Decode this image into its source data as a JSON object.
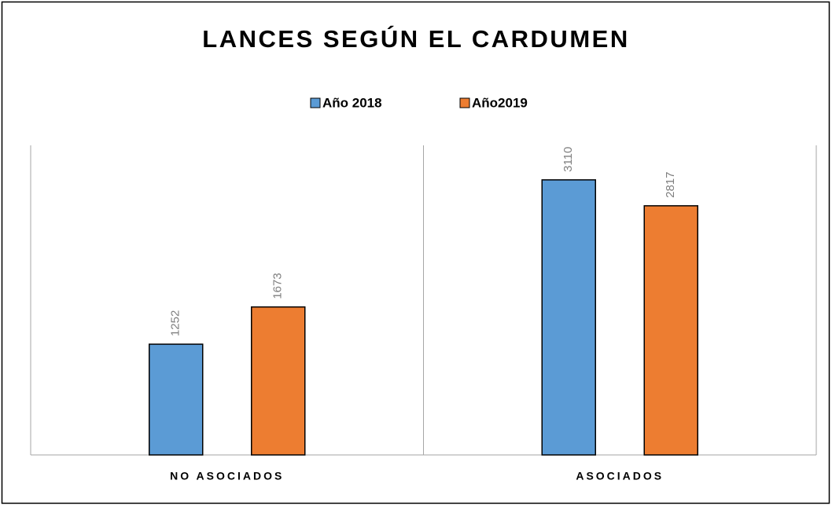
{
  "chart_data": {
    "type": "bar",
    "title": "LANCES SEGÚN EL CARDUMEN",
    "categories": [
      "NO ASOCIADOS",
      "ASOCIADOS"
    ],
    "series": [
      {
        "name": "Año 2018",
        "color": "#5b9bd5",
        "values": [
          1252,
          3110
        ]
      },
      {
        "name": "Año2019",
        "color": "#ed7d31",
        "values": [
          1673,
          2817
        ]
      }
    ],
    "ylim": [
      0,
      3500
    ],
    "legend": "top"
  }
}
